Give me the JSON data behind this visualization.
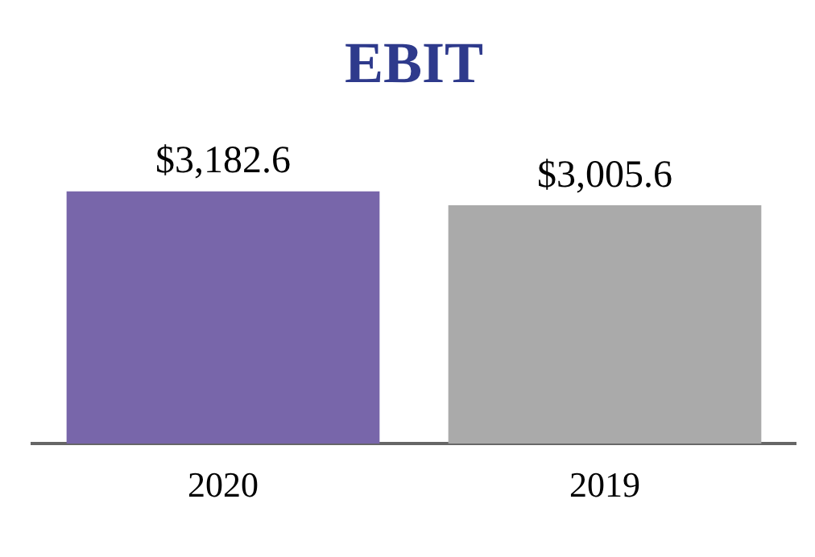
{
  "chart_data": {
    "type": "bar",
    "title": "EBIT",
    "categories": [
      "2020",
      "2019"
    ],
    "values": [
      3182.6,
      3005.6
    ],
    "colors": [
      "#7866aa",
      "#aaaaaa"
    ],
    "value_labels": [
      "$3,182.6",
      "$3,005.6"
    ]
  }
}
